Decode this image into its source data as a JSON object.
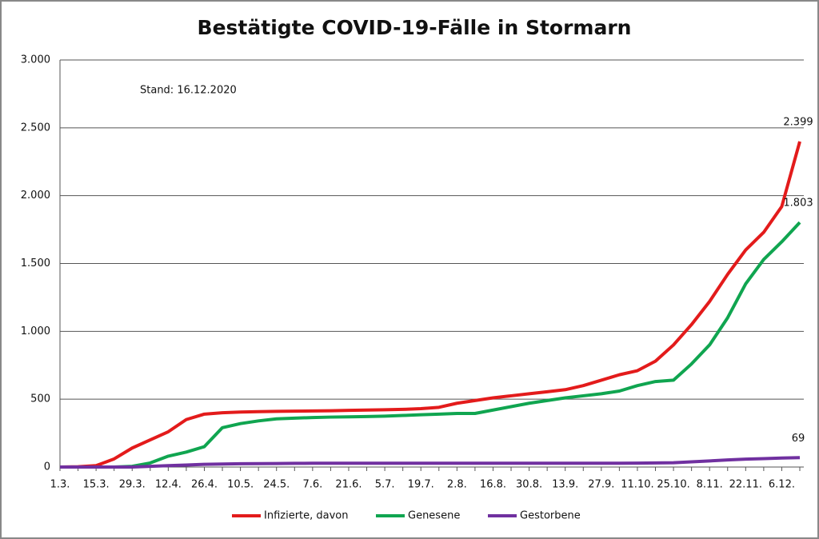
{
  "chart_data": {
    "type": "line",
    "title": "Bestätigte COVID-19-Fälle in Stormarn",
    "annotation": "Stand: 16.12.2020",
    "categories": [
      "1.3.",
      null,
      "15.3.",
      null,
      "29.3.",
      null,
      "12.4.",
      null,
      "26.4.",
      null,
      "10.5.",
      null,
      "24.5.",
      null,
      "7.6.",
      null,
      "21.6.",
      null,
      "5.7.",
      null,
      "19.7.",
      null,
      "2.8.",
      null,
      "16.8.",
      null,
      "30.8.",
      null,
      "13.9.",
      null,
      "27.9.",
      null,
      "11.10.",
      null,
      "25.10.",
      null,
      "8.11.",
      null,
      "22.11.",
      null,
      "6.12.",
      null
    ],
    "series": [
      {
        "name": "Infizierte, davon",
        "color": "#e31b1b",
        "values": [
          0,
          2,
          10,
          60,
          140,
          200,
          260,
          350,
          390,
          400,
          405,
          408,
          410,
          412,
          413,
          415,
          418,
          420,
          422,
          425,
          430,
          440,
          470,
          490,
          510,
          525,
          540,
          555,
          570,
          600,
          640,
          680,
          710,
          780,
          900,
          1050,
          1220,
          1420,
          1600,
          1730,
          1920,
          2399
        ],
        "value_labels": [
          null,
          null,
          null,
          null,
          null,
          null,
          null,
          null,
          null,
          null,
          null,
          null,
          null,
          null,
          null,
          null,
          null,
          null,
          null,
          null,
          null,
          null,
          null,
          null,
          null,
          null,
          null,
          null,
          null,
          null,
          null,
          null,
          null,
          null,
          null,
          null,
          null,
          null,
          null,
          null,
          null,
          "2.399"
        ]
      },
      {
        "name": "Genesene",
        "color": "#10a550",
        "values": [
          0,
          0,
          0,
          0,
          5,
          30,
          80,
          110,
          150,
          290,
          320,
          340,
          355,
          360,
          365,
          368,
          370,
          372,
          375,
          380,
          385,
          390,
          395,
          395,
          420,
          445,
          470,
          490,
          510,
          525,
          540,
          560,
          600,
          630,
          640,
          760,
          900,
          1100,
          1350,
          1530,
          1660,
          1803
        ],
        "value_labels": [
          null,
          null,
          null,
          null,
          null,
          null,
          null,
          null,
          null,
          null,
          null,
          null,
          null,
          null,
          null,
          null,
          null,
          null,
          null,
          null,
          null,
          null,
          null,
          null,
          null,
          null,
          null,
          null,
          null,
          null,
          null,
          null,
          null,
          null,
          null,
          null,
          null,
          null,
          null,
          null,
          null,
          "1.803"
        ]
      },
      {
        "name": "Gestorbene",
        "color": "#7030a0",
        "values": [
          0,
          0,
          0,
          0,
          0,
          5,
          10,
          15,
          20,
          22,
          24,
          25,
          26,
          27,
          28,
          28,
          28,
          28,
          28,
          28,
          28,
          28,
          28,
          28,
          28,
          28,
          28,
          28,
          28,
          28,
          28,
          28,
          29,
          30,
          32,
          38,
          45,
          52,
          58,
          62,
          66,
          69
        ]
      }
    ],
    "ylim": [
      0,
      3000
    ],
    "yticks": [
      0,
      500,
      {
        "value": 1000,
        "label": "1.000"
      },
      {
        "value": 1500,
        "label": "1.500"
      },
      {
        "value": 2000,
        "label": "2.000"
      },
      {
        "value": 2500,
        "label": "2.500"
      },
      {
        "value": 3000,
        "label": "3.000"
      }
    ],
    "grid": true,
    "legend": "bottom"
  }
}
